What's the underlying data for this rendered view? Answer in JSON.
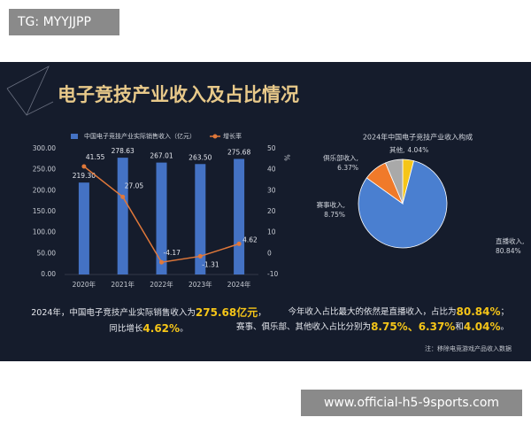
{
  "watermark_top": "TG: MYYJJPP",
  "watermark_bottom": "www.official-h5-9sports.com",
  "title": "电子竞技产业收入及占比情况",
  "chart_data": [
    {
      "type": "bar",
      "categories": [
        "2020年",
        "2021年",
        "2022年",
        "2023年",
        "2024年"
      ],
      "series": [
        {
          "name": "中国电子竞技产业实际销售收入（亿元）",
          "color": "#4472c4",
          "values": [
            219.3,
            278.63,
            267.01,
            263.5,
            275.68
          ],
          "value_labels": [
            "219.30",
            "278.63",
            "267.01",
            "263.50",
            "275.68"
          ]
        },
        {
          "name": "增长率",
          "type": "line",
          "axis": "y2",
          "color": "#e0783a",
          "values": [
            41.55,
            27.05,
            -4.17,
            -1.31,
            4.62
          ]
        }
      ],
      "ylim": [
        0,
        300
      ],
      "yticks": [
        {
          "value": 0,
          "label": "0.00"
        },
        {
          "value": 50,
          "label": "50.00"
        },
        {
          "value": 100,
          "label": "100.00"
        },
        {
          "value": 150,
          "label": "150.00"
        },
        {
          "value": 200,
          "label": "200.00"
        },
        {
          "value": 250,
          "label": "250.00"
        },
        {
          "value": 300,
          "label": "300.00"
        }
      ],
      "y2lim": [
        -10,
        50
      ],
      "y2ticks": [
        -10,
        0,
        10,
        20,
        30,
        40,
        50
      ],
      "y2label": "%"
    },
    {
      "type": "pie",
      "title": "2024年中国电子竞技产业收入构成",
      "categories": [
        "其他,",
        "直播收入,",
        "赛事收入,",
        "俱乐部收入,"
      ],
      "values": [
        4.04,
        80.84,
        8.75,
        6.37
      ],
      "value_labels": [
        "4.04%",
        "80.84%",
        "8.75%",
        "6.37%"
      ],
      "colors": [
        "#f5c518",
        "#4a7fd0",
        "#f07a2a",
        "#a9a9a9"
      ]
    }
  ],
  "summary": {
    "left": [
      [
        {
          "text": "2024年，中国电子竞技产业实际销售收入为",
          "em": false
        },
        {
          "text": "275.68亿元",
          "em": true
        },
        {
          "text": "，",
          "em": false
        }
      ],
      [
        {
          "text": "同比增长",
          "em": false
        },
        {
          "text": "4.62%",
          "em": true
        },
        {
          "text": "。",
          "em": false
        }
      ]
    ],
    "right": [
      [
        {
          "text": "今年收入占比最大的依然是直播收入，占比为",
          "em": false
        },
        {
          "text": "80.84%",
          "em": true
        },
        {
          "text": "；",
          "em": false
        }
      ],
      [
        {
          "text": "赛事、俱乐部、其他收入占比分别为",
          "em": false
        },
        {
          "text": "8.75%、6.37%",
          "em": true
        },
        {
          "text": "和",
          "em": false
        },
        {
          "text": "4.04%",
          "em": true
        },
        {
          "text": "。",
          "em": false
        }
      ]
    ]
  },
  "note": "注：移除电竞游戏产品收入数据"
}
